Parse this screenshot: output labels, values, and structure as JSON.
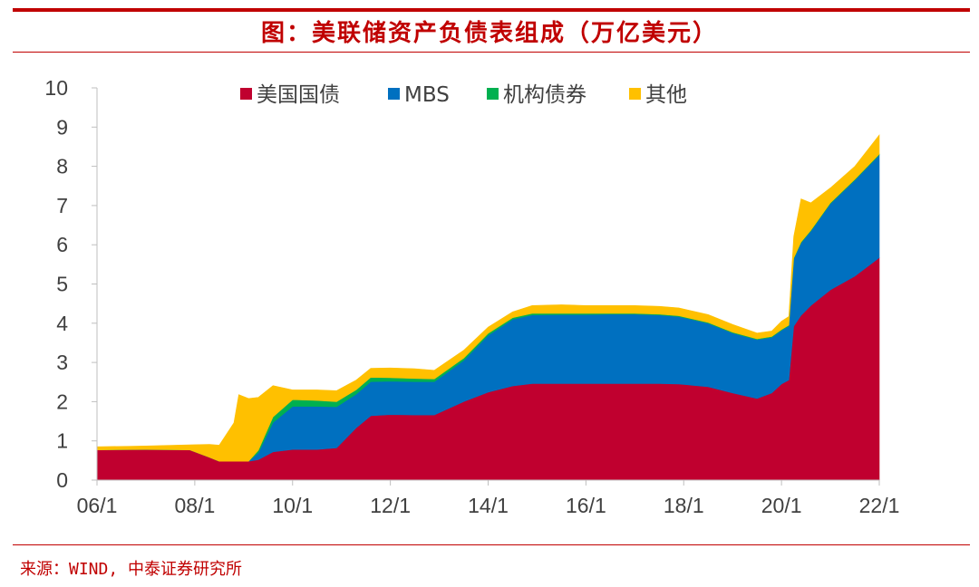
{
  "page": {
    "title": "图：美联储资产负债表组成（万亿美元）",
    "source": "来源：WIND, 中泰证券研究所"
  },
  "chart_data": {
    "type": "area",
    "stacked": true,
    "title": "图：美联储资产负债表组成（万亿美元）",
    "ylabel": "万亿美元",
    "xlabel": "",
    "ylim": [
      0,
      10
    ],
    "yticks": [
      0,
      1,
      2,
      3,
      4,
      5,
      6,
      7,
      8,
      9,
      10
    ],
    "xlim": [
      2006.0,
      2022.0
    ],
    "xticks": [
      {
        "value": 2006,
        "label": "06/1"
      },
      {
        "value": 2008,
        "label": "08/1"
      },
      {
        "value": 2010,
        "label": "10/1"
      },
      {
        "value": 2012,
        "label": "12/1"
      },
      {
        "value": 2014,
        "label": "14/1"
      },
      {
        "value": 2016,
        "label": "16/1"
      },
      {
        "value": 2018,
        "label": "18/1"
      },
      {
        "value": 2020,
        "label": "20/1"
      },
      {
        "value": 2022,
        "label": "22/1"
      }
    ],
    "legend_position": "top",
    "x": [
      2006.0,
      2007.0,
      2007.9,
      2008.3,
      2008.5,
      2008.8,
      2008.9,
      2009.1,
      2009.3,
      2009.6,
      2010.0,
      2010.5,
      2010.9,
      2011.3,
      2011.6,
      2012.0,
      2012.5,
      2012.9,
      2013.5,
      2014.0,
      2014.5,
      2014.9,
      2015.5,
      2016.0,
      2016.5,
      2017.0,
      2017.5,
      2017.9,
      2018.5,
      2019.0,
      2019.5,
      2019.8,
      2020.0,
      2020.15,
      2020.25,
      2020.4,
      2020.6,
      2021.0,
      2021.5,
      2022.0
    ],
    "series": [
      {
        "name": "美国国债",
        "color": "#c0002f",
        "values": [
          0.77,
          0.78,
          0.77,
          0.58,
          0.48,
          0.48,
          0.48,
          0.48,
          0.52,
          0.72,
          0.78,
          0.78,
          0.82,
          1.33,
          1.64,
          1.67,
          1.66,
          1.66,
          2.0,
          2.24,
          2.4,
          2.46,
          2.46,
          2.46,
          2.46,
          2.46,
          2.46,
          2.45,
          2.38,
          2.22,
          2.08,
          2.22,
          2.45,
          2.55,
          3.92,
          4.2,
          4.45,
          4.85,
          5.2,
          5.67
        ]
      },
      {
        "name": "MBS",
        "color": "#0070c0",
        "values": [
          0,
          0,
          0,
          0,
          0,
          0,
          0,
          0,
          0.18,
          0.75,
          1.1,
          1.1,
          1.05,
          0.86,
          0.87,
          0.85,
          0.85,
          0.85,
          1.05,
          1.45,
          1.7,
          1.75,
          1.76,
          1.76,
          1.77,
          1.77,
          1.75,
          1.72,
          1.62,
          1.53,
          1.5,
          1.42,
          1.37,
          1.38,
          1.72,
          1.85,
          1.9,
          2.2,
          2.45,
          2.62
        ]
      },
      {
        "name": "机构债券",
        "color": "#00b050",
        "values": [
          0,
          0,
          0,
          0,
          0,
          0,
          0,
          0,
          0.06,
          0.14,
          0.17,
          0.15,
          0.13,
          0.11,
          0.11,
          0.09,
          0.08,
          0.07,
          0.06,
          0.05,
          0.04,
          0.04,
          0.03,
          0.03,
          0.02,
          0.02,
          0.02,
          0.02,
          0.02,
          0.02,
          0.02,
          0.02,
          0.02,
          0.02,
          0.02,
          0.02,
          0.02,
          0.02,
          0.02,
          0.02
        ]
      },
      {
        "name": "其他",
        "color": "#ffc000",
        "values": [
          0.08,
          0.09,
          0.13,
          0.33,
          0.41,
          0.98,
          1.7,
          1.6,
          1.35,
          0.8,
          0.25,
          0.27,
          0.28,
          0.25,
          0.23,
          0.25,
          0.25,
          0.22,
          0.2,
          0.16,
          0.15,
          0.2,
          0.22,
          0.2,
          0.2,
          0.2,
          0.2,
          0.2,
          0.2,
          0.2,
          0.15,
          0.14,
          0.21,
          0.22,
          0.55,
          1.1,
          0.7,
          0.38,
          0.33,
          0.49
        ]
      }
    ]
  }
}
